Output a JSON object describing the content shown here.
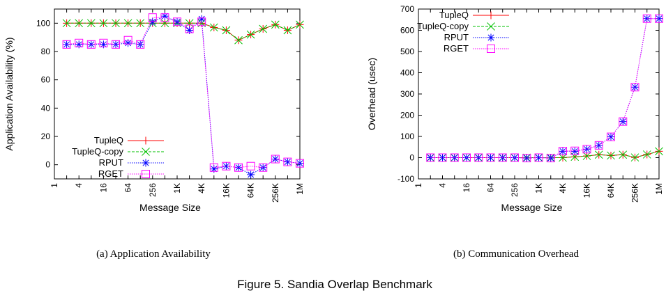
{
  "figure": {
    "caption": "Figure 5.  Sandia Overlap Benchmark"
  },
  "chart_data": [
    {
      "type": "line",
      "subcaption": "(a)  Application Availability",
      "xlabel": "Message Size",
      "ylabel": "Application Availability (%)",
      "xscale": "log2",
      "x_tick_labels": [
        "1",
        "4",
        "16",
        "64",
        "256",
        "1K",
        "4K",
        "16K",
        "64K",
        "256K",
        "1M"
      ],
      "ylim": [
        -10,
        110
      ],
      "y_ticks": [
        0,
        20,
        40,
        60,
        80,
        100
      ],
      "y_tick_labels": [
        "0",
        "20",
        "40",
        "60",
        "80",
        "100"
      ],
      "legend_position": "bottom-left",
      "x": [
        2,
        4,
        8,
        16,
        32,
        64,
        128,
        256,
        512,
        1024,
        2048,
        4096,
        8192,
        16384,
        32768,
        65536,
        131072,
        262144,
        524288,
        1048576
      ],
      "series": [
        {
          "name": "TupleQ",
          "color": "#ff0000",
          "marker": "plus",
          "dash": "solid",
          "values": [
            100,
            100,
            100,
            100,
            100,
            100,
            100,
            100,
            100,
            100,
            100,
            100,
            97,
            95,
            88,
            92,
            96,
            99,
            95,
            99
          ]
        },
        {
          "name": "TupleQ-copy",
          "color": "#00c000",
          "marker": "x",
          "dash": "dashed",
          "values": [
            100,
            100,
            100,
            100,
            100,
            100,
            100,
            100,
            100,
            100,
            100,
            100,
            97,
            95,
            88,
            92,
            96,
            99,
            95,
            99
          ]
        },
        {
          "name": "RPUT",
          "color": "#0000ff",
          "marker": "star",
          "dash": "dotted",
          "values": [
            85,
            85,
            85,
            85,
            85,
            86,
            85,
            101,
            105,
            101,
            95,
            103,
            -3,
            -1,
            -2,
            -7,
            -2,
            4,
            2,
            1
          ]
        },
        {
          "name": "RGET",
          "color": "#ff00ff",
          "marker": "square",
          "dash": "dotted",
          "values": [
            85,
            86,
            85,
            86,
            85,
            88,
            85,
            104,
            104,
            101,
            96,
            101,
            -2,
            -1,
            -2,
            -1,
            -2,
            4,
            2,
            1
          ]
        }
      ]
    },
    {
      "type": "line",
      "subcaption": "(b)  Communication Overhead",
      "xlabel": "Message Size",
      "ylabel": "Overhead (usec)",
      "xscale": "log2",
      "x_tick_labels": [
        "1",
        "4",
        "16",
        "64",
        "256",
        "1K",
        "4K",
        "16K",
        "64K",
        "256K",
        "1M"
      ],
      "ylim": [
        -100,
        700
      ],
      "y_ticks": [
        -100,
        0,
        100,
        200,
        300,
        400,
        500,
        600,
        700
      ],
      "y_tick_labels": [
        "-100",
        "0",
        "100",
        "200",
        "300",
        "400",
        "500",
        "600",
        "700"
      ],
      "legend_position": "top-left",
      "x": [
        2,
        4,
        8,
        16,
        32,
        64,
        128,
        256,
        512,
        1024,
        2048,
        4096,
        8192,
        16384,
        32768,
        65536,
        131072,
        262144,
        524288,
        1048576
      ],
      "series": [
        {
          "name": "TupleQ",
          "color": "#ff0000",
          "marker": "plus",
          "dash": "solid",
          "values": [
            0,
            0,
            0,
            0,
            0,
            0,
            0,
            0,
            0,
            0,
            0,
            0,
            4,
            8,
            14,
            10,
            14,
            1,
            15,
            30
          ]
        },
        {
          "name": "TupleQ-copy",
          "color": "#00c000",
          "marker": "x",
          "dash": "dashed",
          "values": [
            0,
            0,
            0,
            0,
            0,
            0,
            0,
            0,
            0,
            0,
            0,
            0,
            4,
            8,
            14,
            10,
            14,
            1,
            15,
            30
          ]
        },
        {
          "name": "RPUT",
          "color": "#0000ff",
          "marker": "star",
          "dash": "dotted",
          "values": [
            0,
            0,
            0,
            0,
            0,
            0,
            0,
            0,
            -2,
            0,
            -2,
            30,
            30,
            40,
            58,
            98,
            170,
            332,
            655,
            655
          ]
        },
        {
          "name": "RGET",
          "color": "#ff00ff",
          "marker": "square",
          "dash": "dotted",
          "values": [
            0,
            0,
            0,
            0,
            0,
            0,
            0,
            0,
            -2,
            0,
            -2,
            31,
            32,
            40,
            58,
            98,
            170,
            332,
            655,
            655
          ]
        }
      ]
    }
  ]
}
